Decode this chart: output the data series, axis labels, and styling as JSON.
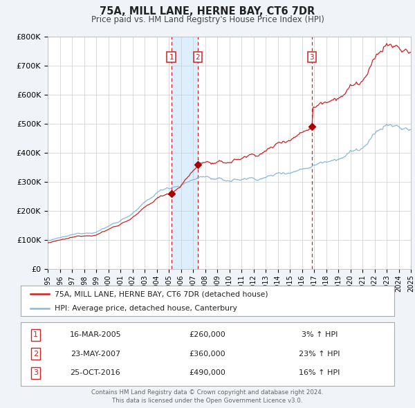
{
  "title": "75A, MILL LANE, HERNE BAY, CT6 7DR",
  "subtitle": "Price paid vs. HM Land Registry's House Price Index (HPI)",
  "x_start_year": 1995,
  "x_end_year": 2025,
  "y_min": 0,
  "y_max": 800000,
  "y_ticks": [
    0,
    100000,
    200000,
    300000,
    400000,
    500000,
    600000,
    700000,
    800000
  ],
  "y_tick_labels": [
    "£0",
    "£100K",
    "£200K",
    "£300K",
    "£400K",
    "£500K",
    "£600K",
    "£700K",
    "£800K"
  ],
  "transactions": [
    {
      "label": "1",
      "date": "16-MAR-2005",
      "price": 260000,
      "hpi_change": "3% ↑ HPI",
      "x_year": 2005.21
    },
    {
      "label": "2",
      "date": "23-MAY-2007",
      "price": 360000,
      "hpi_change": "23% ↑ HPI",
      "x_year": 2007.39
    },
    {
      "label": "3",
      "date": "25-OCT-2016",
      "price": 490000,
      "hpi_change": "16% ↑ HPI",
      "x_year": 2016.82
    }
  ],
  "shaded_region_start": 2005.21,
  "shaded_region_end": 2007.39,
  "legend_line1": "75A, MILL LANE, HERNE BAY, CT6 7DR (detached house)",
  "legend_line2": "HPI: Average price, detached house, Canterbury",
  "footer1": "Contains HM Land Registry data © Crown copyright and database right 2024.",
  "footer2": "This data is licensed under the Open Government Licence v3.0.",
  "property_line_color": "#cc2222",
  "hpi_line_color": "#88b8d8",
  "background_color": "#f0f4f8",
  "plot_bg_color": "#ffffff",
  "grid_color": "#cccccc",
  "shaded_color": "#ddeeff",
  "vline_color": "#cc2222",
  "marker_color": "#aa0000",
  "label_box_color": "#cc2222",
  "x_tick_years": [
    1995,
    1996,
    1997,
    1998,
    1999,
    2000,
    2001,
    2002,
    2003,
    2004,
    2005,
    2006,
    2007,
    2008,
    2009,
    2010,
    2011,
    2012,
    2013,
    2014,
    2015,
    2016,
    2017,
    2018,
    2019,
    2020,
    2021,
    2022,
    2023,
    2024,
    2025
  ]
}
